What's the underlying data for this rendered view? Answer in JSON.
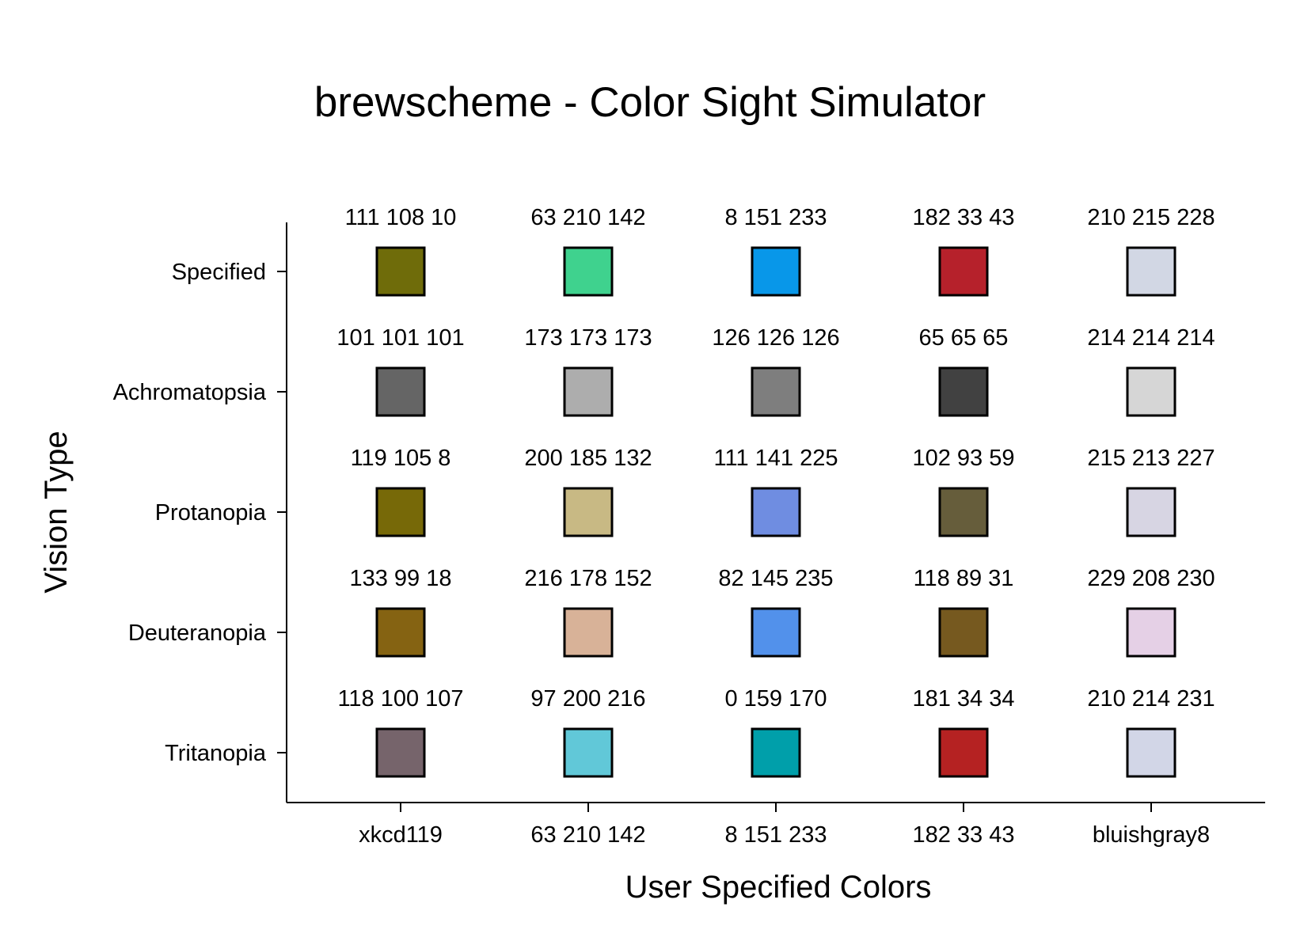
{
  "chart_data": {
    "type": "table",
    "title": "brewscheme - Color Sight Simulator",
    "xlabel": "User Specified Colors",
    "ylabel": "Vision Type",
    "columns": [
      "xkcd119",
      "63 210 142",
      "8 151 233",
      "182 33 43",
      "bluishgray8"
    ],
    "rows": [
      {
        "name": "Specified",
        "cells": [
          {
            "rgb": "111 108 10",
            "color": "#6f6c0a"
          },
          {
            "rgb": "63 210 142",
            "color": "#3fd28e"
          },
          {
            "rgb": "8 151 233",
            "color": "#0897e9"
          },
          {
            "rgb": "182 33 43",
            "color": "#b6212b"
          },
          {
            "rgb": "210 215 228",
            "color": "#d2d7e4"
          }
        ]
      },
      {
        "name": "Achromatopsia",
        "cells": [
          {
            "rgb": "101 101 101",
            "color": "#656565"
          },
          {
            "rgb": "173 173 173",
            "color": "#adadad"
          },
          {
            "rgb": "126 126 126",
            "color": "#7e7e7e"
          },
          {
            "rgb": "65 65 65",
            "color": "#414141"
          },
          {
            "rgb": "214 214 214",
            "color": "#d6d6d6"
          }
        ]
      },
      {
        "name": "Protanopia",
        "cells": [
          {
            "rgb": "119 105 8",
            "color": "#776908"
          },
          {
            "rgb": "200 185 132",
            "color": "#c8b984"
          },
          {
            "rgb": "111 141 225",
            "color": "#6f8de1"
          },
          {
            "rgb": "102 93 59",
            "color": "#665d3b"
          },
          {
            "rgb": "215 213 227",
            "color": "#d7d5e3"
          }
        ]
      },
      {
        "name": "Deuteranopia",
        "cells": [
          {
            "rgb": "133 99 18",
            "color": "#856312"
          },
          {
            "rgb": "216 178 152",
            "color": "#d8b298"
          },
          {
            "rgb": "82 145 235",
            "color": "#5291eb"
          },
          {
            "rgb": "118 89 31",
            "color": "#76591f"
          },
          {
            "rgb": "229 208 230",
            "color": "#e5d0e6"
          }
        ]
      },
      {
        "name": "Tritanopia",
        "cells": [
          {
            "rgb": "118 100 107",
            "color": "#76646b"
          },
          {
            "rgb": "97 200 216",
            "color": "#61c8d8"
          },
          {
            "rgb": "0 159 170",
            "color": "#009faa"
          },
          {
            "rgb": "181 34 34",
            "color": "#b52222"
          },
          {
            "rgb": "210 214 231",
            "color": "#d2d6e7"
          }
        ]
      }
    ]
  }
}
